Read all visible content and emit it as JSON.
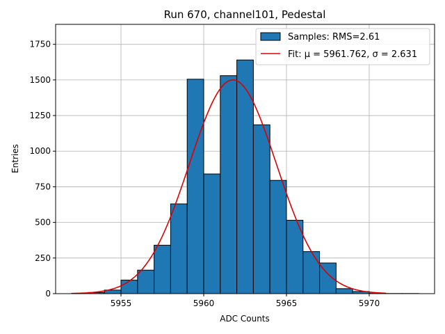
{
  "chart_data": {
    "type": "bar",
    "title": "Run 670, channel101, Pedestal",
    "xlabel": "ADC Counts",
    "ylabel": "Entries",
    "xlim": [
      5951.05,
      5973.95
    ],
    "ylim": [
      0,
      1890
    ],
    "x_ticks": [
      5955,
      5960,
      5965,
      5970
    ],
    "y_ticks": [
      0,
      250,
      500,
      750,
      1000,
      1250,
      1500,
      1750
    ],
    "grid": true,
    "legend_position": "top-right",
    "bin_width": 1,
    "bin_edges_start": [
      5953,
      5954,
      5955,
      5956,
      5957,
      5958,
      5959,
      5960,
      5961,
      5962,
      5963,
      5964,
      5965,
      5966,
      5967,
      5968,
      5969,
      5970,
      5971,
      5972
    ],
    "values": [
      8,
      25,
      95,
      165,
      340,
      630,
      1505,
      840,
      1530,
      1640,
      1185,
      795,
      515,
      295,
      215,
      35,
      15,
      3,
      1,
      1
    ],
    "series": [
      {
        "name": "Samples: RMS=2.61",
        "kind": "histogram",
        "color": "#1f77b4"
      },
      {
        "name": "Fit: μ = 5961.762, σ = 2.631",
        "kind": "gaussian-fit",
        "color": "#dd0000",
        "mu": 5961.762,
        "sigma": 2.631,
        "amplitude": 1500,
        "x_range": [
          5952,
          5971
        ]
      }
    ]
  }
}
